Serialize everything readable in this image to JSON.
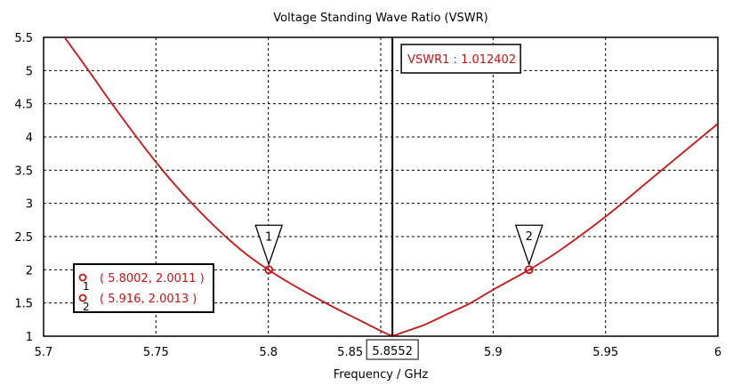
{
  "chart_data": {
    "type": "line",
    "title": "Voltage Standing Wave Ratio (VSWR)",
    "xlabel": "Frequency / GHz",
    "ylabel": "",
    "xlim": [
      5.7,
      6.0
    ],
    "ylim": [
      1,
      5.5
    ],
    "grid": true,
    "x_ticks": [
      "5.7",
      "5.75",
      "5.8",
      "5.85",
      "5.9",
      "5.95",
      "6"
    ],
    "x_tick_values": [
      5.7,
      5.75,
      5.8,
      5.85,
      5.9,
      5.95,
      6.0
    ],
    "y_ticks": [
      "1",
      "1.5",
      "2",
      "2.5",
      "3",
      "3.5",
      "4",
      "4.5",
      "5",
      "5.5"
    ],
    "y_tick_values": [
      1,
      1.5,
      2,
      2.5,
      3,
      3.5,
      4,
      4.5,
      5,
      5.5
    ],
    "series": [
      {
        "name": "VSWR",
        "color": "#cc1111",
        "x": [
          5.7,
          5.71,
          5.72,
          5.73,
          5.74,
          5.75,
          5.76,
          5.77,
          5.78,
          5.79,
          5.8,
          5.81,
          5.82,
          5.83,
          5.84,
          5.85,
          5.8552,
          5.86,
          5.87,
          5.88,
          5.89,
          5.9,
          5.916,
          5.93,
          5.95,
          5.97,
          5.99,
          6.0
        ],
        "y": [
          5.95,
          5.47,
          5.0,
          4.52,
          4.06,
          3.62,
          3.22,
          2.86,
          2.53,
          2.24,
          2.0,
          1.79,
          1.6,
          1.42,
          1.25,
          1.08,
          1.012,
          1.06,
          1.18,
          1.34,
          1.5,
          1.7,
          2.0,
          2.3,
          2.8,
          3.36,
          3.92,
          4.2
        ]
      }
    ],
    "markers": [
      {
        "id": "1",
        "x": 5.8002,
        "y": 2.0011,
        "label": "( 5.8002, 2.0011 )"
      },
      {
        "id": "2",
        "x": 5.916,
        "y": 2.0013,
        "label": "( 5.916, 2.0013 )"
      }
    ],
    "cursor": {
      "x": 5.8552,
      "x_label": "5.8552",
      "readout": "VSWR1 : 1.012402"
    }
  }
}
